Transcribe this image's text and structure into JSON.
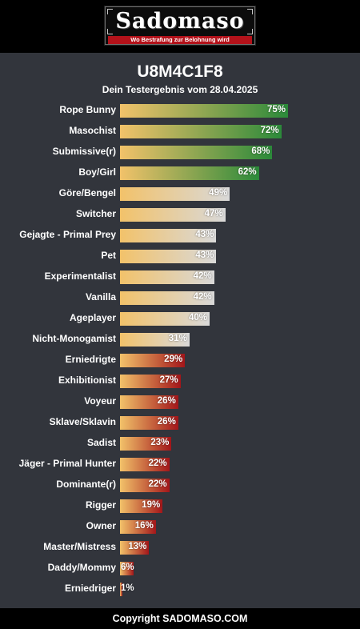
{
  "header": {
    "logo_text": "Sadomaso",
    "logo_tagline": "Wo Bestrafung zur Belohnung wird",
    "colors": {
      "background": "#000000",
      "tagline_band": "#b3121a"
    }
  },
  "result": {
    "code": "U8M4C1F8",
    "subtitle": "Dein Testergebnis vom 28.04.2025"
  },
  "chart_data": {
    "type": "bar",
    "orientation": "horizontal",
    "value_suffix": "%",
    "xlim": [
      0,
      100
    ],
    "grid": false,
    "categories": [
      "Rope Bunny",
      "Masochist",
      "Submissive(r)",
      "Boy/Girl",
      "Göre/Bengel",
      "Switcher",
      "Gejagte - Primal Prey",
      "Pet",
      "Experimentalist",
      "Vanilla",
      "Ageplayer",
      "Nicht-Monogamist",
      "Erniedrigte",
      "Exhibitionist",
      "Voyeur",
      "Sklave/Sklavin",
      "Sadist",
      "Jäger - Primal Hunter",
      "Dominante(r)",
      "Rigger",
      "Owner",
      "Master/Mistress",
      "Daddy/Mommy",
      "Erniedriger"
    ],
    "values": [
      75,
      72,
      68,
      62,
      49,
      47,
      43,
      43,
      42,
      42,
      40,
      31,
      29,
      27,
      26,
      26,
      23,
      22,
      22,
      19,
      16,
      13,
      6,
      1
    ],
    "labels": [
      "75%",
      "72%",
      "68%",
      "62%",
      "49%",
      "47%",
      "43%",
      "43%",
      "42%",
      "42%",
      "40%",
      "31%",
      "29%",
      "27%",
      "26%",
      "26%",
      "23%",
      "22%",
      "22%",
      "19%",
      "16%",
      "13%",
      "6%",
      "1%"
    ],
    "groups": [
      "submissive",
      "submissive",
      "submissive",
      "submissive",
      "neutral",
      "neutral",
      "neutral",
      "neutral",
      "neutral",
      "neutral",
      "neutral",
      "neutral",
      "dominant",
      "dominant",
      "dominant",
      "dominant",
      "dominant",
      "dominant",
      "dominant",
      "dominant",
      "dominant",
      "dominant",
      "dominant",
      "dominant"
    ],
    "colors": {
      "gradient_start": "#f2c26a",
      "submissive_end": "#2b8a3a",
      "neutral_end": "#d9d9d9",
      "dominant_end": "#a3161a"
    }
  },
  "footer": {
    "text": "Copyright SADOMASO.COM"
  }
}
